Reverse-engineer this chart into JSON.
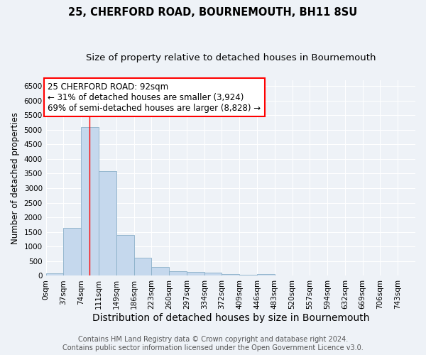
{
  "title": "25, CHERFORD ROAD, BOURNEMOUTH, BH11 8SU",
  "subtitle": "Size of property relative to detached houses in Bournemouth",
  "xlabel": "Distribution of detached houses by size in Bournemouth",
  "ylabel": "Number of detached properties",
  "bar_color": "#c5d8ed",
  "bar_edge_color": "#8aafc8",
  "bar_categories": [
    "0sqm",
    "37sqm",
    "74sqm",
    "111sqm",
    "149sqm",
    "186sqm",
    "223sqm",
    "260sqm",
    "297sqm",
    "334sqm",
    "372sqm",
    "409sqm",
    "446sqm",
    "483sqm",
    "520sqm",
    "557sqm",
    "594sqm",
    "632sqm",
    "669sqm",
    "706sqm",
    "743sqm"
  ],
  "bar_values": [
    75,
    1640,
    5100,
    3580,
    1390,
    610,
    300,
    155,
    140,
    100,
    50,
    30,
    58,
    0,
    0,
    0,
    0,
    0,
    0,
    0,
    0
  ],
  "ylim": [
    0,
    6700
  ],
  "yticks": [
    0,
    500,
    1000,
    1500,
    2000,
    2500,
    3000,
    3500,
    4000,
    4500,
    5000,
    5500,
    6000,
    6500
  ],
  "red_line_x": 92,
  "bin_width": 37,
  "annotation_text": "25 CHERFORD ROAD: 92sqm\n← 31% of detached houses are smaller (3,924)\n69% of semi-detached houses are larger (8,828) →",
  "annotation_box_color": "white",
  "annotation_box_edge_color": "red",
  "footer_line1": "Contains HM Land Registry data © Crown copyright and database right 2024.",
  "footer_line2": "Contains public sector information licensed under the Open Government Licence v3.0.",
  "background_color": "#eef2f7",
  "grid_color": "white",
  "title_fontsize": 10.5,
  "subtitle_fontsize": 9.5,
  "xlabel_fontsize": 10,
  "ylabel_fontsize": 8.5,
  "tick_fontsize": 7.5,
  "annotation_fontsize": 8.5,
  "footer_fontsize": 7
}
